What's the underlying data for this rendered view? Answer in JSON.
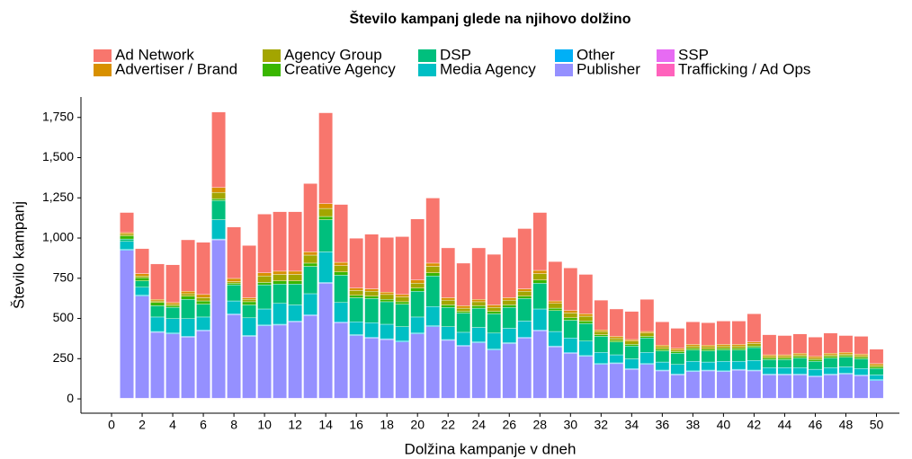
{
  "chart_data": {
    "type": "stacked_bar",
    "title": "Število kampanj glede na njihovo dolžino",
    "x_label": "Dolžina kampanje v dneh",
    "y_label": "Število kampanj",
    "x": [
      1,
      2,
      3,
      4,
      5,
      6,
      7,
      8,
      9,
      10,
      11,
      12,
      13,
      14,
      15,
      16,
      17,
      18,
      19,
      20,
      21,
      22,
      23,
      24,
      25,
      26,
      27,
      28,
      29,
      30,
      31,
      32,
      33,
      34,
      35,
      36,
      37,
      38,
      39,
      40,
      41,
      42,
      43,
      44,
      45,
      46,
      47,
      48,
      49,
      50
    ],
    "xlim": [
      -2,
      51.5
    ],
    "xticks": [
      0,
      2,
      4,
      6,
      8,
      10,
      12,
      14,
      16,
      18,
      20,
      22,
      24,
      26,
      28,
      30,
      32,
      34,
      36,
      38,
      40,
      42,
      44,
      46,
      48,
      50
    ],
    "ylim": [
      -89,
      1877
    ],
    "yticks": [
      0,
      250,
      500,
      750,
      {
        "value": 1000,
        "label": "1,000"
      },
      {
        "value": 1250,
        "label": "1,250"
      },
      {
        "value": 1500,
        "label": "1,500"
      },
      {
        "value": 1750,
        "label": "1,750"
      }
    ],
    "grid": false,
    "legend": "top",
    "series": [
      {
        "name": "Ad Network",
        "color": "#F8766D",
        "values": [
          125,
          155,
          220,
          235,
          320,
          325,
          470,
          320,
          325,
          365,
          370,
          370,
          425,
          565,
          360,
          310,
          340,
          340,
          360,
          380,
          405,
          310,
          265,
          320,
          315,
          375,
          375,
          360,
          245,
          265,
          245,
          185,
          170,
          175,
          200,
          145,
          125,
          140,
          140,
          145,
          145,
          175,
          125,
          120,
          120,
          120,
          125,
          105,
          110,
          90
        ]
      },
      {
        "name": "Advertiser / Brand",
        "color": "#D89000",
        "values": [
          10,
          15,
          10,
          10,
          15,
          20,
          30,
          20,
          10,
          20,
          20,
          20,
          20,
          30,
          20,
          15,
          15,
          15,
          15,
          20,
          20,
          15,
          15,
          15,
          15,
          15,
          15,
          20,
          15,
          15,
          15,
          10,
          10,
          10,
          10,
          10,
          10,
          10,
          10,
          10,
          10,
          10,
          10,
          10,
          10,
          10,
          10,
          10,
          10,
          10
        ]
      },
      {
        "name": "Agency Group",
        "color": "#A3A500",
        "values": [
          10,
          10,
          10,
          10,
          15,
          20,
          40,
          10,
          15,
          40,
          40,
          40,
          50,
          50,
          40,
          30,
          30,
          30,
          30,
          30,
          40,
          30,
          20,
          25,
          25,
          30,
          30,
          40,
          30,
          30,
          30,
          20,
          15,
          20,
          20,
          15,
          10,
          15,
          15,
          15,
          15,
          15,
          10,
          10,
          10,
          10,
          10,
          10,
          10,
          10
        ]
      },
      {
        "name": "Creative Agency",
        "color": "#39B600",
        "values": [
          20,
          20,
          20,
          10,
          20,
          20,
          10,
          10,
          20,
          15,
          20,
          20,
          20,
          20,
          20,
          15,
          15,
          15,
          15,
          20,
          20,
          15,
          10,
          15,
          15,
          15,
          15,
          20,
          15,
          15,
          15,
          10,
          10,
          10,
          10,
          10,
          10,
          10,
          10,
          10,
          10,
          10,
          10,
          10,
          10,
          10,
          10,
          10,
          10,
          10
        ]
      },
      {
        "name": "DSP",
        "color": "#00BF7D",
        "values": [
          15,
          40,
          70,
          70,
          120,
          80,
          120,
          100,
          80,
          150,
          120,
          130,
          170,
          200,
          170,
          150,
          150,
          140,
          140,
          160,
          190,
          120,
          120,
          120,
          120,
          130,
          140,
          160,
          130,
          110,
          110,
          100,
          80,
          80,
          90,
          70,
          70,
          70,
          70,
          70,
          70,
          80,
          50,
          50,
          60,
          50,
          60,
          60,
          60,
          40
        ]
      },
      {
        "name": "Media Agency",
        "color": "#00BFC4",
        "values": [
          50,
          50,
          90,
          90,
          110,
          80,
          120,
          80,
          110,
          100,
          130,
          100,
          130,
          190,
          120,
          80,
          90,
          90,
          90,
          100,
          120,
          80,
          80,
          90,
          100,
          90,
          100,
          130,
          90,
          90,
          90,
          70,
          50,
          60,
          70,
          50,
          60,
          60,
          50,
          60,
          50,
          60,
          40,
          40,
          40,
          40,
          40,
          40,
          40,
          30
        ]
      },
      {
        "name": "Other",
        "color": "#00B0F6",
        "values": [
          5,
          5,
          5,
          5,
          5,
          5,
          5,
          5,
          5,
          5,
          5,
          5,
          5,
          5,
          5,
          5,
          5,
          5,
          5,
          5,
          5,
          5,
          5,
          5,
          5,
          5,
          5,
          5,
          5,
          5,
          5,
          5,
          5,
          5,
          5,
          5,
          5,
          5,
          5,
          5,
          5,
          5,
          5,
          5,
          5,
          5,
          5,
          5,
          5,
          5
        ]
      },
      {
        "name": "Publisher",
        "color": "#9590FF",
        "values": [
          920,
          635,
          410,
          400,
          380,
          420,
          985,
          520,
          385,
          450,
          455,
          475,
          515,
          715,
          470,
          390,
          375,
          365,
          350,
          400,
          445,
          360,
          325,
          345,
          300,
          340,
          375,
          420,
          320,
          280,
          260,
          210,
          215,
          180,
          210,
          170,
          145,
          165,
          170,
          165,
          175,
          170,
          145,
          145,
          145,
          135,
          145,
          150,
          140,
          110
        ]
      },
      {
        "name": "SSP",
        "color": "#E76BF3",
        "values": [
          2,
          2,
          2,
          2,
          2,
          2,
          2,
          2,
          2,
          2,
          2,
          2,
          2,
          2,
          2,
          2,
          2,
          2,
          2,
          2,
          2,
          2,
          2,
          2,
          2,
          2,
          2,
          2,
          2,
          2,
          2,
          2,
          2,
          2,
          2,
          2,
          2,
          2,
          2,
          2,
          2,
          2,
          2,
          2,
          2,
          2,
          2,
          2,
          2,
          2
        ]
      },
      {
        "name": "Trafficking / Ad Ops",
        "color": "#FF62BC",
        "values": [
          2,
          2,
          2,
          2,
          2,
          2,
          2,
          2,
          2,
          2,
          2,
          2,
          2,
          2,
          2,
          2,
          2,
          2,
          2,
          2,
          2,
          2,
          2,
          2,
          2,
          2,
          2,
          2,
          2,
          2,
          2,
          2,
          2,
          2,
          2,
          2,
          2,
          2,
          2,
          2,
          2,
          2,
          2,
          2,
          2,
          2,
          2,
          2,
          2,
          2
        ]
      }
    ]
  }
}
